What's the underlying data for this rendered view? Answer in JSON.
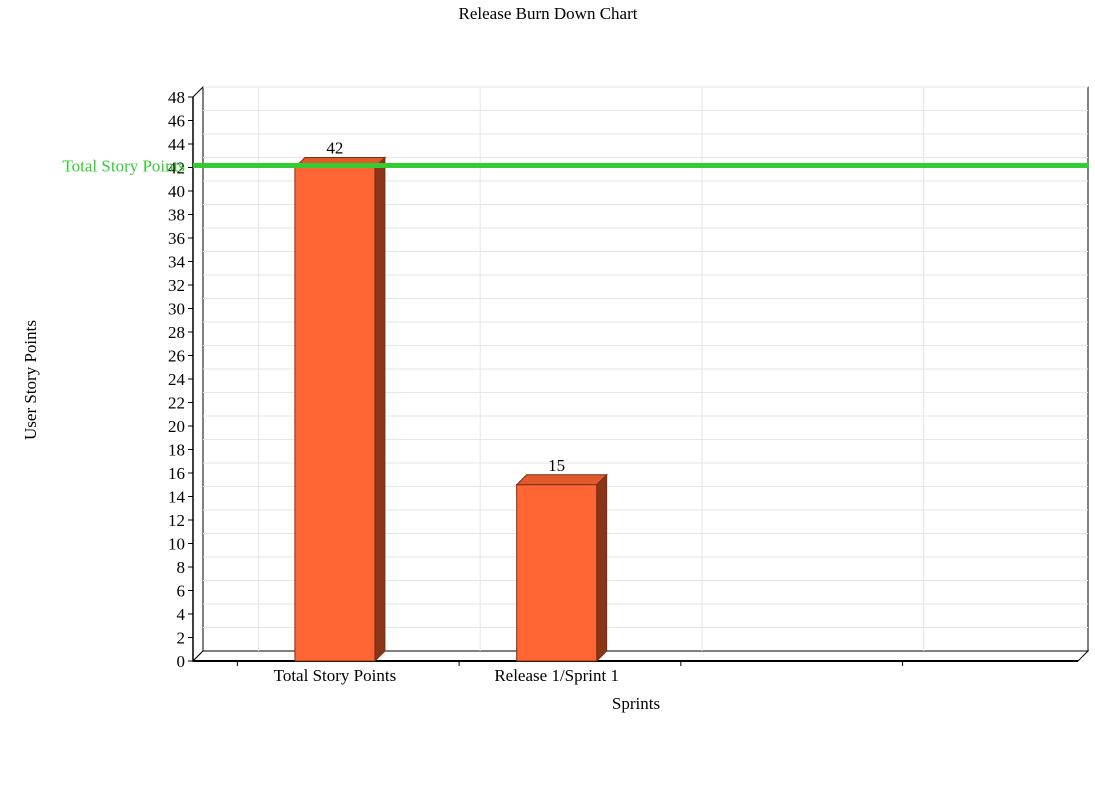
{
  "chart_data": {
    "type": "bar",
    "title": "Release Burn Down Chart",
    "xlabel": "Sprints",
    "ylabel": "User Story Points",
    "categories": [
      "Total Story Points",
      "Release 1/Sprint 1"
    ],
    "values": [
      42,
      15
    ],
    "data_labels": [
      "42",
      "15"
    ],
    "ylim": [
      0,
      48
    ],
    "ytick_step": 2,
    "x_slots": 4,
    "grid": true,
    "reference_line": {
      "label": "Total Story Points",
      "value": 42
    },
    "colors": {
      "bar_front": "#ff6633",
      "bar_top": "#e05a2c",
      "bar_side": "#8a3418",
      "bar_edge": "#7a2e10",
      "reference_line": "#33cc33",
      "grid": "#e6e6e6",
      "axis": "#000000"
    }
  }
}
